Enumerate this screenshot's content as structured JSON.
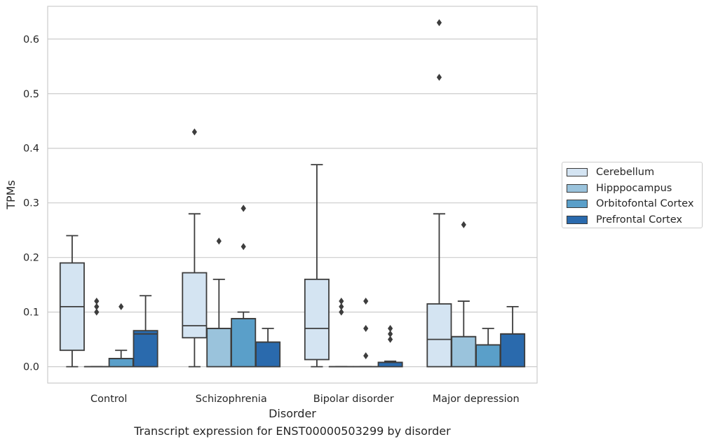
{
  "chart_data": {
    "type": "box",
    "title": "",
    "caption": "Transcript expression for ENST00000503299 by disorder",
    "xlabel": "Disorder",
    "ylabel": "TPMs",
    "ylim": [
      -0.03,
      0.66
    ],
    "yticks": [
      "0.0",
      "0.1",
      "0.2",
      "0.3",
      "0.4",
      "0.5",
      "0.6"
    ],
    "grid": "horizontal",
    "legend_position": "right",
    "categories": [
      "Control",
      "Schizophrenia",
      "Bipolar disorder",
      "Major depression"
    ],
    "series": [
      {
        "name": "Cerebellum",
        "color": "#d4e4f2",
        "boxes": [
          {
            "whisker_low": 0.0,
            "q1": 0.03,
            "median": 0.11,
            "q3": 0.19,
            "whisker_high": 0.24,
            "outliers": []
          },
          {
            "whisker_low": 0.0,
            "q1": 0.053,
            "median": 0.075,
            "q3": 0.172,
            "whisker_high": 0.28,
            "outliers": [
              0.43
            ]
          },
          {
            "whisker_low": 0.0,
            "q1": 0.013,
            "median": 0.07,
            "q3": 0.16,
            "whisker_high": 0.37,
            "outliers": []
          },
          {
            "whisker_low": 0.0,
            "q1": 0.0,
            "median": 0.05,
            "q3": 0.115,
            "whisker_high": 0.28,
            "outliers": [
              0.53,
              0.63
            ]
          }
        ]
      },
      {
        "name": "Hipppocampus",
        "color": "#9ac3dc",
        "boxes": [
          {
            "whisker_low": 0.0,
            "q1": 0.0,
            "median": 0.0,
            "q3": 0.0,
            "whisker_high": 0.0,
            "outliers": [
              0.1,
              0.11,
              0.12
            ]
          },
          {
            "whisker_low": 0.0,
            "q1": 0.0,
            "median": 0.07,
            "q3": 0.07,
            "whisker_high": 0.16,
            "outliers": [
              0.23
            ]
          },
          {
            "whisker_low": 0.0,
            "q1": 0.0,
            "median": 0.0,
            "q3": 0.0,
            "whisker_high": 0.0,
            "outliers": [
              0.1,
              0.11,
              0.12
            ]
          },
          {
            "whisker_low": 0.0,
            "q1": 0.0,
            "median": 0.055,
            "q3": 0.055,
            "whisker_high": 0.12,
            "outliers": [
              0.26
            ]
          }
        ]
      },
      {
        "name": "Orbitofontal Cortex",
        "color": "#5a9fc9",
        "boxes": [
          {
            "whisker_low": 0.0,
            "q1": 0.0,
            "median": 0.015,
            "q3": 0.015,
            "whisker_high": 0.03,
            "outliers": [
              0.11
            ]
          },
          {
            "whisker_low": 0.0,
            "q1": 0.0,
            "median": 0.088,
            "q3": 0.088,
            "whisker_high": 0.1,
            "outliers": [
              0.22,
              0.29,
              0.29
            ]
          },
          {
            "whisker_low": 0.0,
            "q1": 0.0,
            "median": 0.0,
            "q3": 0.0,
            "whisker_high": 0.0,
            "outliers": [
              0.02,
              0.07,
              0.12
            ]
          },
          {
            "whisker_low": 0.0,
            "q1": 0.0,
            "median": 0.04,
            "q3": 0.04,
            "whisker_high": 0.07,
            "outliers": []
          }
        ]
      },
      {
        "name": "Prefrontal Cortex",
        "color": "#2a6aad",
        "boxes": [
          {
            "whisker_low": 0.0,
            "q1": 0.0,
            "median": 0.06,
            "q3": 0.066,
            "whisker_high": 0.13,
            "outliers": []
          },
          {
            "whisker_low": 0.0,
            "q1": 0.0,
            "median": 0.045,
            "q3": 0.045,
            "whisker_high": 0.07,
            "outliers": []
          },
          {
            "whisker_low": 0.0,
            "q1": 0.0,
            "median": 0.008,
            "q3": 0.008,
            "whisker_high": 0.01,
            "outliers": [
              0.05,
              0.06,
              0.07
            ]
          },
          {
            "whisker_low": 0.0,
            "q1": 0.0,
            "median": 0.06,
            "q3": 0.06,
            "whisker_high": 0.11,
            "outliers": []
          }
        ]
      }
    ]
  }
}
